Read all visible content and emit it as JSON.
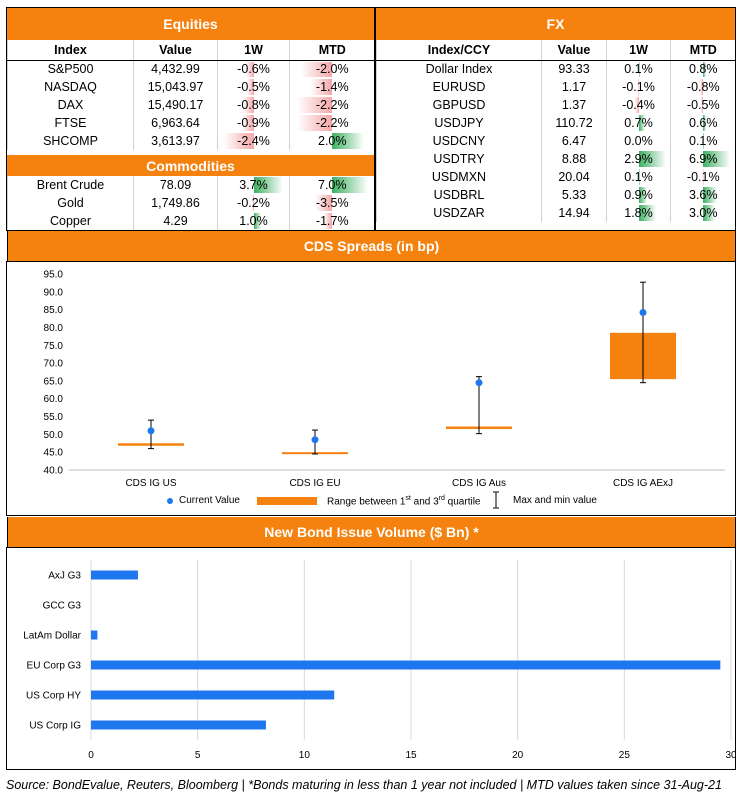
{
  "equities": {
    "title": "Equities",
    "headers": [
      "Index",
      "Value",
      "1W",
      "MTD"
    ],
    "rows": [
      {
        "name": "S&P500",
        "value": "4,432.99",
        "w1": "-0.6%",
        "w1_num": -0.6,
        "mtd": "-2.0%",
        "mtd_num": -2.0
      },
      {
        "name": "NASDAQ",
        "value": "15,043.97",
        "w1": "-0.5%",
        "w1_num": -0.5,
        "mtd": "-1.4%",
        "mtd_num": -1.4
      },
      {
        "name": "DAX",
        "value": "15,490.17",
        "w1": "-0.8%",
        "w1_num": -0.8,
        "mtd": "-2.2%",
        "mtd_num": -2.2
      },
      {
        "name": "FTSE",
        "value": "6,963.64",
        "w1": "-0.9%",
        "w1_num": -0.9,
        "mtd": "-2.2%",
        "mtd_num": -2.2
      },
      {
        "name": "SHCOMP",
        "value": "3,613.97",
        "w1": "-2.4%",
        "w1_num": -2.4,
        "mtd": "2.0%",
        "mtd_num": 2.0
      }
    ]
  },
  "commodities": {
    "title": "Commodities",
    "rows": [
      {
        "name": "Brent Crude",
        "value": "78.09",
        "w1": "3.7%",
        "w1_num": 3.7,
        "mtd": "7.0%",
        "mtd_num": 7.0
      },
      {
        "name": "Gold",
        "value": "1,749.86",
        "w1": "-0.2%",
        "w1_num": -0.2,
        "mtd": "-3.5%",
        "mtd_num": -3.5
      },
      {
        "name": "Copper",
        "value": "4.29",
        "w1": "1.0%",
        "w1_num": 1.0,
        "mtd": "-1.7%",
        "mtd_num": -1.7
      }
    ]
  },
  "fx": {
    "title": "FX",
    "headers": [
      "Index/CCY",
      "Value",
      "1W",
      "MTD"
    ],
    "rows": [
      {
        "name": "Dollar Index",
        "value": "93.33",
        "w1": "0.1%",
        "w1_num": 0.1,
        "mtd": "0.8%",
        "mtd_num": 0.8
      },
      {
        "name": "EURUSD",
        "value": "1.17",
        "w1": "-0.1%",
        "w1_num": -0.1,
        "mtd": "-0.8%",
        "mtd_num": -0.8
      },
      {
        "name": "GBPUSD",
        "value": "1.37",
        "w1": "-0.4%",
        "w1_num": -0.4,
        "mtd": "-0.5%",
        "mtd_num": -0.5
      },
      {
        "name": "USDJPY",
        "value": "110.72",
        "w1": "0.7%",
        "w1_num": 0.7,
        "mtd": "0.6%",
        "mtd_num": 0.6
      },
      {
        "name": "USDCNY",
        "value": "6.47",
        "w1": "0.0%",
        "w1_num": 0.0,
        "mtd": "0.1%",
        "mtd_num": 0.1
      },
      {
        "name": "USDTRY",
        "value": "8.88",
        "w1": "2.9%",
        "w1_num": 2.9,
        "mtd": "6.9%",
        "mtd_num": 6.9
      },
      {
        "name": "USDMXN",
        "value": "20.04",
        "w1": "0.1%",
        "w1_num": 0.1,
        "mtd": "-0.1%",
        "mtd_num": -0.1
      },
      {
        "name": "USDBRL",
        "value": "5.33",
        "w1": "0.9%",
        "w1_num": 0.9,
        "mtd": "3.6%",
        "mtd_num": 3.6
      },
      {
        "name": "USDZAR",
        "value": "14.94",
        "w1": "1.8%",
        "w1_num": 1.8,
        "mtd": "3.0%",
        "mtd_num": 3.0
      }
    ]
  },
  "colors": {
    "accent": "#F5820E",
    "negative_bar": "#F4A7A9",
    "positive_bar": "#3DB060",
    "series_blue": "#1F77F0",
    "box_orange": "#F5820E"
  },
  "cds_chart": {
    "title": "CDS Spreads (in bp)",
    "legend": {
      "current": "Current Value",
      "range_text": "Range between 1",
      "range_sup1": "st",
      "range_and": " and 3",
      "range_sup2": "rd",
      "range_tail": " quartile",
      "maxmin": "Max and min value"
    }
  },
  "bond_chart": {
    "title": "New Bond Issue Volume ($ Bn) *"
  },
  "footer": {
    "text": "Source: BondEvalue, Reuters, Bloomberg | *Bonds maturing in less than 1 year not included | MTD values taken since 31-Aug-21"
  },
  "chart_data": [
    {
      "type": "box",
      "title": "CDS Spreads (in bp)",
      "categories": [
        "CDS IG US",
        "CDS IG EU",
        "CDS IG Aus",
        "CDS IG AExJ"
      ],
      "ylim": [
        40,
        95
      ],
      "yticks": [
        "40.0",
        "45.0",
        "50.0",
        "55.0",
        "60.0",
        "65.0",
        "70.0",
        "75.0",
        "80.0",
        "85.0",
        "90.0",
        "95.0"
      ],
      "series": [
        {
          "name": "Current Value",
          "values": [
            51.0,
            48.5,
            64.5,
            84.2
          ]
        },
        {
          "name": "Range between 1st and 3rd quartile",
          "q1": [
            46.8,
            44.6,
            51.5,
            65.5
          ],
          "q3": [
            47.5,
            45.0,
            52.2,
            78.5
          ]
        },
        {
          "name": "Max and min value",
          "min": [
            46.0,
            44.5,
            50.2,
            64.5
          ],
          "max": [
            54.0,
            51.2,
            66.2,
            92.7
          ]
        }
      ]
    },
    {
      "type": "bar",
      "orientation": "horizontal",
      "title": "New Bond Issue Volume ($ Bn) *",
      "categories": [
        "AxJ G3",
        "GCC G3",
        "LatAm Dollar",
        "EU Corp G3",
        "US Corp HY",
        "US Corp IG"
      ],
      "values": [
        2.2,
        0,
        0.3,
        29.5,
        11.4,
        8.2
      ],
      "xlim": [
        0,
        30
      ],
      "xticks": [
        "0",
        "5",
        "10",
        "15",
        "20",
        "25",
        "30"
      ]
    }
  ]
}
